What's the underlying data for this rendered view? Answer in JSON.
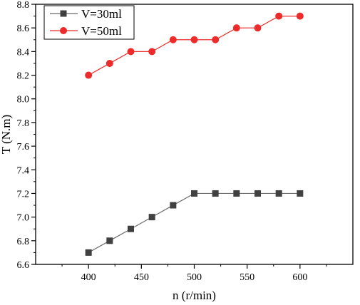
{
  "chart_data": {
    "type": "line",
    "title": "",
    "xlabel": "n (r/min)",
    "ylabel": "T (N.m)",
    "xlim": [
      350,
      650
    ],
    "ylim": [
      6.6,
      8.8
    ],
    "x_ticks": [
      400,
      450,
      500,
      550,
      600
    ],
    "y_ticks": [
      6.6,
      6.8,
      7.0,
      7.2,
      7.4,
      7.6,
      7.8,
      8.0,
      8.2,
      8.4,
      8.6,
      8.8
    ],
    "x_tick_labels": [
      "400",
      "450",
      "500",
      "550",
      "600"
    ],
    "y_tick_labels": [
      "6.6",
      "6.8",
      "7.0",
      "7.2",
      "7.4",
      "7.6",
      "7.8",
      "8.0",
      "8.2",
      "8.4",
      "8.6",
      "8.8"
    ],
    "grid": false,
    "legend_position": "top-left",
    "x": [
      400,
      420,
      440,
      460,
      480,
      500,
      520,
      540,
      560,
      580,
      600
    ],
    "series": [
      {
        "name": "V=30ml",
        "marker": "square",
        "color": "#404040",
        "line_color": "#6b6b6b",
        "values": [
          6.7,
          6.8,
          6.9,
          7.0,
          7.1,
          7.2,
          7.2,
          7.2,
          7.2,
          7.2,
          7.2
        ]
      },
      {
        "name": "V=50ml",
        "marker": "circle",
        "color": "#ee2b2b",
        "line_color": "#ee2b2b",
        "values": [
          8.2,
          8.3,
          8.4,
          8.4,
          8.5,
          8.5,
          8.5,
          8.6,
          8.6,
          8.7,
          8.7
        ]
      }
    ]
  }
}
